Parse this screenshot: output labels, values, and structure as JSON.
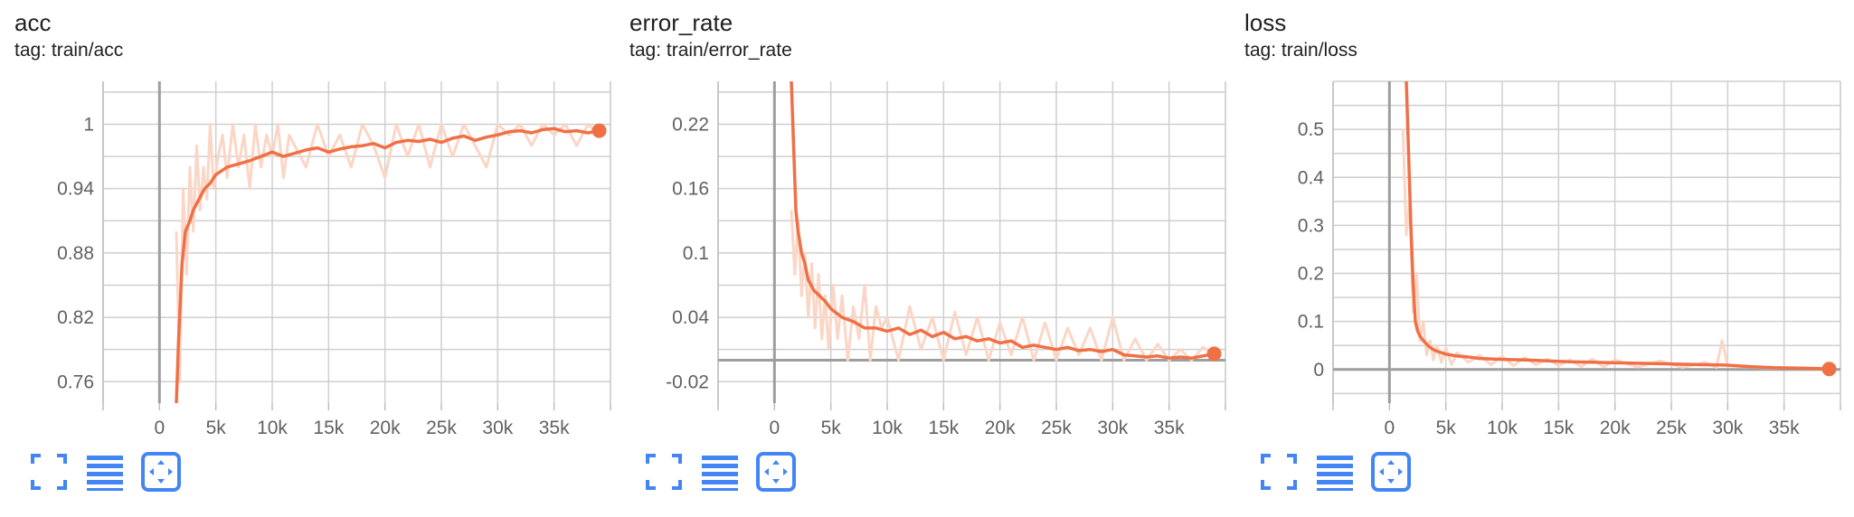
{
  "accent_color": "#f07046",
  "smoothed_color": "#f07046",
  "raw_color": "#fbd6c6",
  "toolbar": {
    "icons": [
      "fullscreen-icon",
      "list-icon",
      "fit-domain-icon"
    ]
  },
  "chart_data": [
    {
      "type": "line",
      "title": "acc",
      "tag": "tag: train/acc",
      "x_ticks": [
        0,
        5000,
        10000,
        15000,
        20000,
        25000,
        30000,
        35000
      ],
      "x_tick_labels": [
        "0",
        "5k",
        "10k",
        "15k",
        "20k",
        "25k",
        "30k",
        "35k"
      ],
      "y_ticks": [
        0.76,
        0.82,
        0.88,
        0.94,
        1
      ],
      "y_tick_labels": [
        "0.76",
        "0.82",
        "0.88",
        "0.94",
        "1"
      ],
      "xlim": [
        -5000,
        40000
      ],
      "ylim": [
        0.74,
        1.04
      ],
      "grid": true,
      "series": [
        {
          "kind": "smoothed",
          "x": [
            1500,
            1700,
            2000,
            2300,
            2700,
            3000,
            3500,
            4000,
            4500,
            5000,
            6000,
            7000,
            8000,
            9000,
            10000,
            11000,
            12000,
            13000,
            14000,
            15000,
            16000,
            17000,
            18000,
            19000,
            20000,
            21000,
            22000,
            23000,
            24000,
            25000,
            26000,
            27000,
            28000,
            29000,
            30000,
            31000,
            32000,
            33000,
            34000,
            35000,
            36000,
            37000,
            38000,
            39000
          ],
          "y": [
            0.74,
            0.8,
            0.87,
            0.9,
            0.91,
            0.92,
            0.93,
            0.94,
            0.945,
            0.953,
            0.96,
            0.963,
            0.966,
            0.97,
            0.974,
            0.97,
            0.973,
            0.976,
            0.978,
            0.974,
            0.977,
            0.979,
            0.98,
            0.982,
            0.978,
            0.983,
            0.985,
            0.984,
            0.986,
            0.983,
            0.987,
            0.989,
            0.985,
            0.988,
            0.99,
            0.993,
            0.994,
            0.992,
            0.995,
            0.996,
            0.993,
            0.994,
            0.992,
            0.994
          ]
        },
        {
          "kind": "raw",
          "x": [
            1500,
            1800,
            2100,
            2400,
            2700,
            3000,
            3300,
            3600,
            3900,
            4200,
            4500,
            4800,
            5200,
            5600,
            6000,
            6500,
            7000,
            7500,
            8000,
            8500,
            9000,
            9500,
            10000,
            10500,
            11000,
            11500,
            12000,
            13000,
            14000,
            15000,
            16000,
            17000,
            18000,
            19000,
            20000,
            21000,
            22000,
            23000,
            24000,
            25000,
            26000,
            27000,
            28000,
            29000,
            30000,
            31000,
            32000,
            33000,
            34000,
            35000,
            36000,
            37000,
            38000,
            39000
          ],
          "y": [
            0.9,
            0.76,
            0.94,
            0.86,
            0.96,
            0.9,
            0.98,
            0.92,
            0.96,
            0.93,
            1.0,
            0.94,
            0.97,
            0.99,
            0.95,
            1.0,
            0.96,
            0.99,
            0.94,
            1.0,
            0.96,
            0.99,
            0.97,
            1.0,
            0.95,
            0.99,
            0.98,
            0.96,
            1.0,
            0.97,
            0.99,
            0.96,
            1.0,
            0.98,
            0.95,
            1.0,
            0.97,
            1.0,
            0.96,
            1.0,
            0.97,
            1.0,
            0.98,
            0.96,
            1.0,
            0.99,
            1.0,
            0.98,
            1.0,
            0.99,
            1.0,
            0.98,
            1.0,
            0.99
          ]
        }
      ]
    },
    {
      "type": "line",
      "title": "error_rate",
      "tag": "tag: train/error_rate",
      "x_ticks": [
        0,
        5000,
        10000,
        15000,
        20000,
        25000,
        30000,
        35000
      ],
      "x_tick_labels": [
        "0",
        "5k",
        "10k",
        "15k",
        "20k",
        "25k",
        "30k",
        "35k"
      ],
      "y_ticks": [
        -0.02,
        0.04,
        0.1,
        0.16,
        0.22
      ],
      "y_tick_labels": [
        "-0.02",
        "0.04",
        "0.1",
        "0.16",
        "0.22"
      ],
      "xlim": [
        -5000,
        40000
      ],
      "ylim": [
        -0.04,
        0.26
      ],
      "grid": true,
      "series": [
        {
          "kind": "smoothed",
          "x": [
            1500,
            1700,
            1900,
            2100,
            2400,
            2700,
            3000,
            3500,
            4000,
            4500,
            5000,
            6000,
            7000,
            8000,
            9000,
            10000,
            11000,
            12000,
            13000,
            14000,
            15000,
            16000,
            17000,
            18000,
            19000,
            20000,
            21000,
            22000,
            23000,
            24000,
            25000,
            26000,
            27000,
            28000,
            29000,
            30000,
            31000,
            32000,
            33000,
            34000,
            35000,
            36000,
            37000,
            38000,
            39000
          ],
          "y": [
            0.26,
            0.2,
            0.14,
            0.12,
            0.1,
            0.09,
            0.075,
            0.065,
            0.06,
            0.055,
            0.048,
            0.04,
            0.036,
            0.03,
            0.03,
            0.027,
            0.03,
            0.024,
            0.028,
            0.022,
            0.026,
            0.02,
            0.022,
            0.018,
            0.02,
            0.016,
            0.018,
            0.012,
            0.014,
            0.012,
            0.01,
            0.012,
            0.009,
            0.01,
            0.008,
            0.01,
            0.005,
            0.004,
            0.003,
            0.004,
            0.002,
            0.003,
            0.002,
            0.004,
            0.006
          ]
        },
        {
          "kind": "raw",
          "x": [
            1500,
            1800,
            2100,
            2400,
            2700,
            3000,
            3300,
            3600,
            3900,
            4200,
            4500,
            4800,
            5200,
            5600,
            6000,
            6500,
            7000,
            7500,
            8000,
            8500,
            9000,
            9500,
            10000,
            11000,
            12000,
            13000,
            14000,
            15000,
            16000,
            17000,
            18000,
            19000,
            20000,
            21000,
            22000,
            23000,
            24000,
            25000,
            26000,
            27000,
            28000,
            29000,
            30000,
            31000,
            32000,
            33000,
            34000,
            35000,
            36000,
            37000,
            38000,
            39000
          ],
          "y": [
            0.14,
            0.08,
            0.13,
            0.06,
            0.1,
            0.04,
            0.09,
            0.03,
            0.08,
            0.02,
            0.06,
            0.01,
            0.07,
            0.02,
            0.06,
            0.0,
            0.05,
            0.02,
            0.07,
            0.0,
            0.05,
            0.03,
            0.04,
            0.0,
            0.05,
            0.01,
            0.04,
            0.0,
            0.045,
            0.005,
            0.04,
            0.0,
            0.035,
            0.005,
            0.04,
            0.0,
            0.035,
            0.0,
            0.03,
            0.005,
            0.03,
            0.0,
            0.04,
            0.0,
            0.02,
            0.0,
            0.015,
            0.0,
            0.01,
            0.0,
            0.012,
            0.006
          ]
        }
      ]
    },
    {
      "type": "line",
      "title": "loss",
      "tag": "tag: train/loss",
      "x_ticks": [
        0,
        5000,
        10000,
        15000,
        20000,
        25000,
        30000,
        35000
      ],
      "x_tick_labels": [
        "0",
        "5k",
        "10k",
        "15k",
        "20k",
        "25k",
        "30k",
        "35k"
      ],
      "y_ticks": [
        0,
        0.1,
        0.2,
        0.3,
        0.4,
        0.5
      ],
      "y_tick_labels": [
        "0",
        "0.1",
        "0.2",
        "0.3",
        "0.4",
        "0.5"
      ],
      "xlim": [
        -5000,
        40000
      ],
      "ylim": [
        -0.07,
        0.6
      ],
      "grid": true,
      "series": [
        {
          "kind": "smoothed",
          "x": [
            1500,
            1700,
            1900,
            2100,
            2300,
            2500,
            2700,
            3000,
            3500,
            4000,
            5000,
            6000,
            7000,
            8000,
            9000,
            10000,
            12000,
            14000,
            16000,
            18000,
            20000,
            22000,
            24000,
            26000,
            28000,
            30000,
            32000,
            34000,
            36000,
            38000,
            39000
          ],
          "y": [
            0.6,
            0.45,
            0.3,
            0.18,
            0.1,
            0.08,
            0.07,
            0.06,
            0.048,
            0.04,
            0.032,
            0.028,
            0.026,
            0.023,
            0.022,
            0.021,
            0.02,
            0.018,
            0.016,
            0.015,
            0.014,
            0.013,
            0.012,
            0.011,
            0.01,
            0.009,
            0.006,
            0.004,
            0.003,
            0.002,
            0.001
          ]
        },
        {
          "kind": "raw",
          "x": [
            1200,
            1500,
            1800,
            2100,
            2400,
            2700,
            3000,
            3300,
            3600,
            3900,
            4200,
            4600,
            5000,
            5500,
            6000,
            7000,
            8000,
            9000,
            10000,
            11000,
            12000,
            13000,
            14000,
            15000,
            16000,
            17000,
            18000,
            19000,
            20000,
            22000,
            24000,
            26000,
            28000,
            29000,
            29500,
            30000,
            32000,
            34000,
            36000,
            38000,
            39000
          ],
          "y": [
            0.5,
            0.28,
            0.35,
            0.12,
            0.2,
            0.06,
            0.1,
            0.03,
            0.06,
            0.02,
            0.05,
            0.015,
            0.045,
            0.01,
            0.035,
            0.015,
            0.03,
            0.01,
            0.028,
            0.008,
            0.025,
            0.01,
            0.022,
            0.008,
            0.02,
            0.006,
            0.022,
            0.005,
            0.02,
            0.005,
            0.018,
            0.004,
            0.015,
            0.004,
            0.06,
            0.008,
            0.005,
            0.003,
            0.004,
            0.002,
            0.003
          ]
        }
      ]
    }
  ]
}
